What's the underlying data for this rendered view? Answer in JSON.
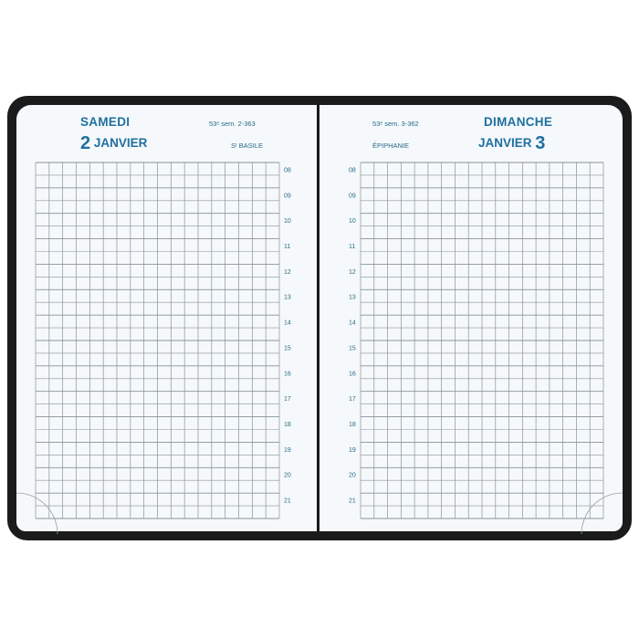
{
  "left_page": {
    "day_name": "SAMEDI",
    "day_number": "2",
    "month": "JANVIER",
    "week_info": "53ᵉ sem.   2-363",
    "saint": "Sᵗ BASILE"
  },
  "right_page": {
    "day_name": "DIMANCHE",
    "day_number": "3",
    "month": "JANVIER",
    "week_info": "53ᵉ sem.   3-362",
    "saint": "ÉPIPHANIE"
  },
  "hours": [
    "08",
    "09",
    "10",
    "11",
    "12",
    "13",
    "14",
    "15",
    "16",
    "17",
    "18",
    "19",
    "20",
    "21"
  ],
  "colors": {
    "accent": "#1f6f9f",
    "cover": "#1b1b1b",
    "grid": "#8a9298"
  }
}
